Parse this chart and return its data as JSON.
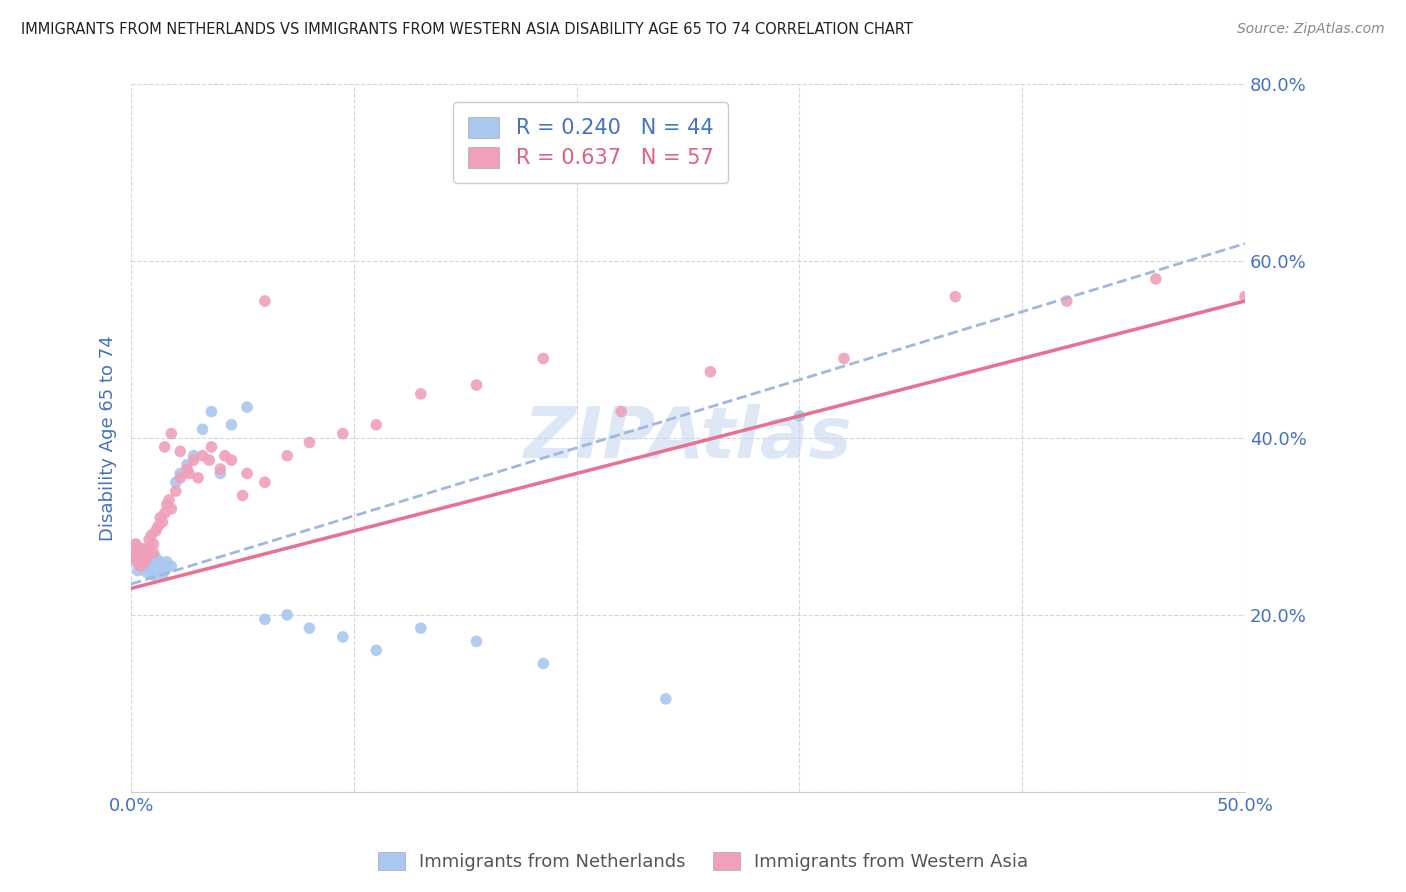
{
  "title": "IMMIGRANTS FROM NETHERLANDS VS IMMIGRANTS FROM WESTERN ASIA DISABILITY AGE 65 TO 74 CORRELATION CHART",
  "source": "Source: ZipAtlas.com",
  "ylabel_label": "Disability Age 65 to 74",
  "x_ticks": [
    0.0,
    0.1,
    0.2,
    0.3,
    0.4,
    0.5
  ],
  "x_tick_labels": [
    "0.0%",
    "",
    "",
    "",
    "",
    "50.0%"
  ],
  "y_ticks": [
    0.0,
    0.2,
    0.4,
    0.6,
    0.8
  ],
  "y_tick_labels": [
    "",
    "20.0%",
    "40.0%",
    "60.0%",
    "80.0%"
  ],
  "x_lim": [
    0.0,
    0.5
  ],
  "y_lim": [
    0.0,
    0.8
  ],
  "netherlands_R": 0.24,
  "netherlands_N": 44,
  "westernasia_R": 0.637,
  "westernasia_N": 57,
  "netherlands_color": "#a8c8f0",
  "westernasia_color": "#f0a0b8",
  "netherlands_line_color": "#a0b8e0",
  "westernasia_line_color": "#e87090",
  "legend_color_blue": "#4472c4",
  "legend_color_pink": "#e06080",
  "title_color": "#222222",
  "axis_label_color": "#4472c4",
  "tick_color": "#4472c4",
  "grid_color": "#cccccc",
  "watermark_color": "#c8d8f0",
  "netherlands_x": [
    0.001,
    0.002,
    0.002,
    0.003,
    0.003,
    0.004,
    0.004,
    0.005,
    0.005,
    0.006,
    0.006,
    0.007,
    0.007,
    0.008,
    0.008,
    0.009,
    0.01,
    0.01,
    0.011,
    0.012,
    0.013,
    0.014,
    0.015,
    0.016,
    0.018,
    0.02,
    0.022,
    0.025,
    0.028,
    0.032,
    0.036,
    0.04,
    0.045,
    0.052,
    0.06,
    0.07,
    0.08,
    0.095,
    0.11,
    0.13,
    0.155,
    0.185,
    0.24,
    0.3
  ],
  "netherlands_y": [
    0.265,
    0.26,
    0.28,
    0.25,
    0.275,
    0.255,
    0.27,
    0.258,
    0.268,
    0.262,
    0.272,
    0.248,
    0.265,
    0.26,
    0.255,
    0.25,
    0.245,
    0.26,
    0.265,
    0.255,
    0.26,
    0.245,
    0.25,
    0.26,
    0.255,
    0.35,
    0.36,
    0.37,
    0.38,
    0.41,
    0.43,
    0.36,
    0.415,
    0.435,
    0.195,
    0.2,
    0.185,
    0.175,
    0.16,
    0.185,
    0.17,
    0.145,
    0.105,
    0.425
  ],
  "westernasia_x": [
    0.001,
    0.002,
    0.002,
    0.003,
    0.003,
    0.004,
    0.005,
    0.005,
    0.006,
    0.006,
    0.007,
    0.008,
    0.008,
    0.009,
    0.01,
    0.01,
    0.011,
    0.012,
    0.013,
    0.014,
    0.015,
    0.016,
    0.017,
    0.018,
    0.02,
    0.022,
    0.025,
    0.028,
    0.032,
    0.036,
    0.04,
    0.045,
    0.052,
    0.06,
    0.07,
    0.08,
    0.095,
    0.11,
    0.13,
    0.155,
    0.185,
    0.22,
    0.26,
    0.32,
    0.37,
    0.42,
    0.46,
    0.5,
    0.015,
    0.018,
    0.022,
    0.026,
    0.03,
    0.035,
    0.042,
    0.05,
    0.06
  ],
  "westernasia_y": [
    0.265,
    0.27,
    0.28,
    0.26,
    0.275,
    0.255,
    0.265,
    0.275,
    0.27,
    0.26,
    0.265,
    0.275,
    0.285,
    0.29,
    0.28,
    0.27,
    0.295,
    0.3,
    0.31,
    0.305,
    0.315,
    0.325,
    0.33,
    0.32,
    0.34,
    0.355,
    0.365,
    0.375,
    0.38,
    0.39,
    0.365,
    0.375,
    0.36,
    0.35,
    0.38,
    0.395,
    0.405,
    0.415,
    0.45,
    0.46,
    0.49,
    0.43,
    0.475,
    0.49,
    0.56,
    0.555,
    0.58,
    0.56,
    0.39,
    0.405,
    0.385,
    0.36,
    0.355,
    0.375,
    0.38,
    0.335,
    0.555
  ],
  "netherlands_trendline_x": [
    0.0,
    0.5
  ],
  "netherlands_trendline_y": [
    0.235,
    0.62
  ],
  "westernasia_trendline_x": [
    0.0,
    0.5
  ],
  "westernasia_trendline_y": [
    0.23,
    0.555
  ]
}
